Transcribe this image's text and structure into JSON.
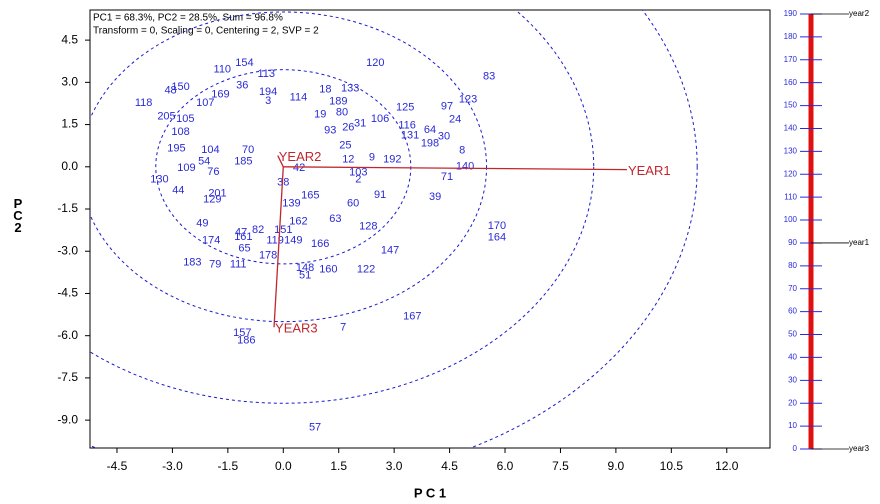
{
  "chart_data": [
    {
      "type": "biplot",
      "annotations": [
        "PC1 = 68.3%, PC2 = 28.5%, Sum = 96.8%",
        "Transform = 0, Scaling = 0, Centering = 2, SVP = 2"
      ],
      "xlabel": "P C 1",
      "ylabel": "P C 2",
      "xlim": [
        -5.23,
        13.17
      ],
      "ylim": [
        -9.99,
        5.57
      ],
      "xticks": [
        {
          "value": -4.5,
          "label": "-4.5"
        },
        {
          "value": -3,
          "label": "-3.0"
        },
        {
          "value": -1.5,
          "label": "-1.5"
        },
        {
          "value": 0,
          "label": "0.0"
        },
        {
          "value": 1.5,
          "label": "1.5"
        },
        {
          "value": 3,
          "label": "3.0"
        },
        {
          "value": 4.5,
          "label": "4.5"
        },
        {
          "value": 6,
          "label": "6.0"
        },
        {
          "value": 7.5,
          "label": "7.5"
        },
        {
          "value": 9,
          "label": "9.0"
        },
        {
          "value": 10.5,
          "label": "10.5"
        },
        {
          "value": 12,
          "label": "12.0"
        }
      ],
      "yticks": [
        {
          "value": 4.5,
          "label": "4.5"
        },
        {
          "value": 3,
          "label": "3.0"
        },
        {
          "value": 1.5,
          "label": "1.5"
        },
        {
          "value": 0,
          "label": "0.0"
        },
        {
          "value": -1.5,
          "label": "-1.5"
        },
        {
          "value": -3,
          "label": "-3.0"
        },
        {
          "value": -4.5,
          "label": "-4.5"
        },
        {
          "value": -6,
          "label": "-6.0"
        },
        {
          "value": -7.5,
          "label": "-7.5"
        },
        {
          "value": -9,
          "label": "-9.0"
        }
      ],
      "circles": [
        3.45,
        5.5,
        8.4,
        11.2
      ],
      "color": "#2a2ad8",
      "vector_color": "#c0272d",
      "vectors": [
        {
          "name": "YEAR1",
          "x": 9.3,
          "y": -0.1
        },
        {
          "name": "YEAR2",
          "x": -0.15,
          "y": 0.4
        },
        {
          "name": "YEAR3",
          "x": -0.25,
          "y": -5.7
        }
      ],
      "labels": [
        "120",
        "83",
        "123",
        "97",
        "24",
        "125",
        "106",
        "116",
        "64",
        "30",
        "131",
        "198",
        "8",
        "140",
        "71",
        "39",
        "170",
        "164",
        "192",
        "9",
        "91",
        "128",
        "147",
        "122",
        "167",
        "7",
        "57",
        "157",
        "186",
        "183",
        "79",
        "111",
        "51",
        "160",
        "148",
        "166",
        "63",
        "60",
        "65",
        "174",
        "49",
        "201",
        "44",
        "130",
        "109",
        "195",
        "108",
        "205",
        "118",
        "48",
        "150",
        "110",
        "154",
        "113",
        "36",
        "194",
        "107",
        "169",
        "3",
        "114",
        "18",
        "133",
        "189",
        "80",
        "19",
        "31",
        "26",
        "93",
        "25",
        "12",
        "2",
        "103",
        "165",
        "139",
        "162",
        "151",
        "119",
        "149",
        "178",
        "82",
        "47",
        "161",
        "70",
        "38",
        "42",
        "129",
        "105",
        "104",
        "185",
        "54",
        "76"
      ],
      "x": [
        2.49,
        5.57,
        5.0,
        4.43,
        4.65,
        3.3,
        2.62,
        3.35,
        3.97,
        4.35,
        3.43,
        3.97,
        4.84,
        4.92,
        4.43,
        4.11,
        5.78,
        5.78,
        2.95,
        2.4,
        2.62,
        2.3,
        2.89,
        2.24,
        3.49,
        1.62,
        0.86,
        -1.11,
        -1.0,
        -2.46,
        -1.84,
        -1.22,
        0.59,
        1.22,
        0.59,
        1.0,
        1.41,
        1.89,
        -1.05,
        -1.95,
        -2.19,
        -1.78,
        -2.84,
        -3.35,
        -2.62,
        -2.89,
        -2.78,
        -3.16,
        -3.78,
        -3.05,
        -2.78,
        -1.65,
        -1.05,
        -0.46,
        -1.11,
        -0.41,
        -2.11,
        -1.7,
        -0.41,
        0.41,
        1.14,
        1.81,
        1.49,
        1.59,
        1.0,
        2.08,
        1.76,
        1.27,
        1.68,
        1.76,
        2.03,
        2.03,
        0.73,
        0.22,
        0.41,
        0.0,
        -0.22,
        0.27,
        -0.41,
        -0.68,
        -1.14,
        -1.08,
        -0.95,
        0.0,
        0.43,
        -1.92,
        -2.65,
        -1.97,
        -1.08,
        -2.14,
        -1.89
      ],
      "y": [
        3.69,
        3.2,
        2.38,
        2.13,
        1.67,
        2.1,
        1.7,
        1.46,
        1.31,
        1.07,
        1.1,
        0.82,
        0.57,
        0.0,
        -0.36,
        -1.07,
        -2.1,
        -2.52,
        0.25,
        0.32,
        -1.0,
        -2.13,
        -2.98,
        -3.66,
        -5.33,
        -5.72,
        -9.27,
        -5.9,
        -6.18,
        -3.41,
        -3.48,
        -3.48,
        -3.87,
        -3.66,
        -3.59,
        -2.74,
        -1.85,
        -1.31,
        -2.91,
        -2.63,
        -2.02,
        -0.96,
        -0.85,
        -0.46,
        -0.04,
        0.64,
        1.24,
        1.78,
        2.27,
        2.7,
        2.84,
        3.45,
        3.69,
        3.3,
        2.88,
        2.66,
        2.27,
        2.56,
        2.34,
        2.45,
        2.74,
        2.77,
        2.31,
        1.92,
        1.85,
        1.53,
        1.39,
        1.28,
        0.75,
        0.25,
        -0.46,
        -0.21,
        -1.03,
        -1.31,
        -1.95,
        -2.24,
        -2.63,
        -2.63,
        -3.16,
        -2.24,
        -2.34,
        -2.49,
        0.6,
        -0.57,
        -0.04,
        -1.17,
        1.7,
        0.6,
        0.18,
        0.18,
        -0.18
      ]
    },
    {
      "type": "scale",
      "ylim": [
        0,
        190
      ],
      "yticks": [
        0,
        10,
        20,
        30,
        40,
        50,
        60,
        70,
        80,
        90,
        100,
        110,
        120,
        130,
        140,
        150,
        160,
        170,
        180,
        190
      ],
      "color": "#2a2ad8",
      "bar_color": "#e01010",
      "markers": [
        {
          "name": "year2",
          "value": 190
        },
        {
          "name": "year1",
          "value": 90
        },
        {
          "name": "year3",
          "value": 0
        }
      ]
    }
  ]
}
